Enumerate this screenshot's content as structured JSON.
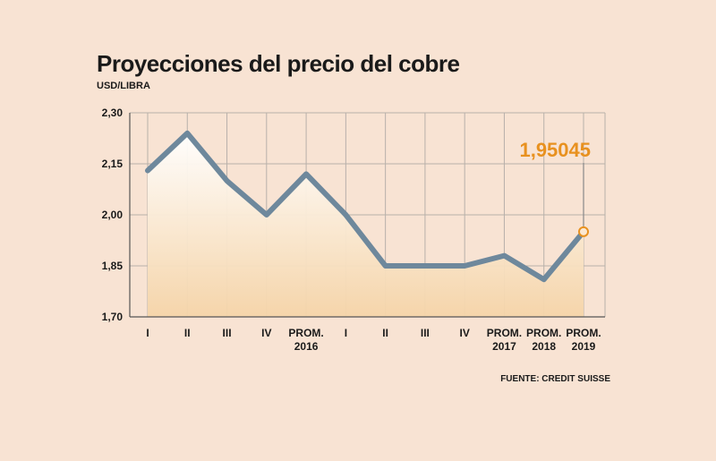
{
  "chart_data": {
    "type": "line",
    "title": "Proyecciones del precio del cobre",
    "unit": "USD/LIBRA",
    "source": "FUENTE: CREDIT SUISSE",
    "categories": [
      [
        "I"
      ],
      [
        "II"
      ],
      [
        "III"
      ],
      [
        "IV"
      ],
      [
        "PROM.",
        "2016"
      ],
      [
        "I"
      ],
      [
        "II"
      ],
      [
        "III"
      ],
      [
        "IV"
      ],
      [
        "PROM.",
        "2017"
      ],
      [
        "PROM.",
        "2018"
      ],
      [
        "PROM.",
        "2019"
      ]
    ],
    "values": [
      2.13,
      2.24,
      2.1,
      2.0,
      2.12,
      2.0,
      1.85,
      1.85,
      1.85,
      1.88,
      1.81,
      1.95045
    ],
    "ylim": [
      1.7,
      2.3
    ],
    "yticks": [
      "2,30",
      "2,15",
      "2,00",
      "1,85",
      "1,70"
    ],
    "ytick_values": [
      2.3,
      2.15,
      2.0,
      1.85,
      1.7
    ],
    "grid": true,
    "annotation": {
      "text": "1,95045",
      "index": 11
    },
    "colors": {
      "line": "#6e889c",
      "annotation": "#e8911f",
      "fill_top": "#ffffff",
      "fill_bottom": "#f5d4a8",
      "grid": "#b8b0aa"
    }
  }
}
